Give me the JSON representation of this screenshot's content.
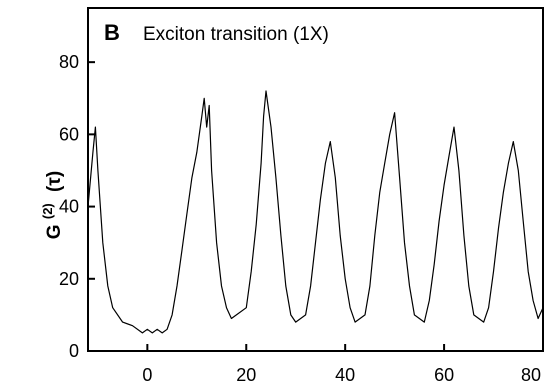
{
  "chart_data": {
    "type": "line",
    "panel_label": "B",
    "title": "Exciton transition (1X)",
    "xlabel": "",
    "ylabel": "G(2) (τ)",
    "ylabel_main": "G",
    "ylabel_sup": "(2)",
    "ylabel_arg": "(τ)",
    "xlim": [
      -12,
      80
    ],
    "ylim": [
      0,
      95
    ],
    "xticks": [
      0,
      20,
      40,
      60,
      80
    ],
    "yticks": [
      0,
      20,
      40,
      60,
      80
    ],
    "grid": false,
    "line_color": "#000000",
    "series": [
      {
        "x": [
          -12,
          -11,
          -10.5,
          -10,
          -9,
          -8,
          -7,
          -5,
          -3,
          -1,
          0,
          1,
          2,
          3,
          4,
          5,
          6,
          7,
          8,
          9,
          10,
          11,
          11.5,
          12,
          12.5,
          13,
          14,
          15,
          16,
          17,
          18,
          20,
          21,
          22,
          23,
          23.5,
          24,
          25,
          26,
          27,
          28,
          29,
          30,
          32,
          33,
          34,
          35,
          36,
          37,
          38,
          39,
          40,
          41,
          42,
          44,
          45,
          46,
          47,
          48,
          49,
          50,
          51,
          52,
          53,
          54,
          56,
          57,
          58,
          59,
          60,
          61,
          62,
          63,
          64,
          65,
          66,
          68,
          69,
          70,
          71,
          72,
          73,
          74,
          75,
          76,
          77,
          78,
          79,
          80
        ],
        "y": [
          40,
          55,
          62,
          50,
          30,
          18,
          12,
          8,
          7,
          5,
          6,
          5,
          6,
          5,
          6,
          10,
          18,
          28,
          38,
          48,
          55,
          65,
          70,
          62,
          68,
          50,
          30,
          18,
          12,
          9,
          10,
          12,
          22,
          35,
          52,
          65,
          72,
          62,
          48,
          32,
          18,
          10,
          8,
          10,
          18,
          30,
          42,
          52,
          58,
          48,
          32,
          20,
          12,
          8,
          10,
          18,
          32,
          44,
          52,
          60,
          66,
          48,
          30,
          18,
          10,
          8,
          14,
          24,
          36,
          46,
          54,
          62,
          50,
          32,
          18,
          10,
          8,
          12,
          22,
          34,
          44,
          52,
          58,
          50,
          36,
          22,
          14,
          9,
          12
        ]
      }
    ]
  }
}
